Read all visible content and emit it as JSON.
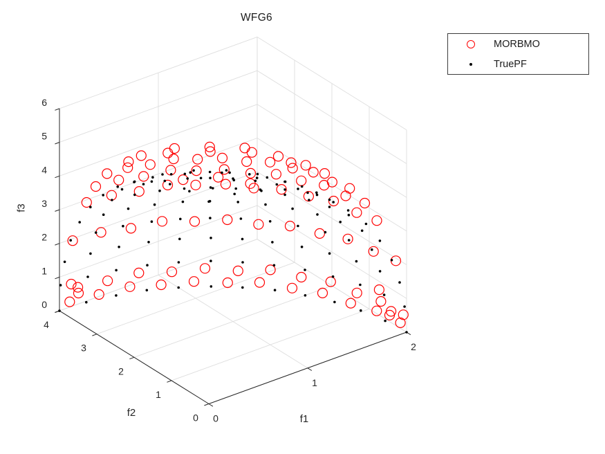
{
  "figure": {
    "background": "#ffffff"
  },
  "chart_data": {
    "type": "scatter",
    "projection": "3d",
    "title": "WFG6",
    "xlabel": "f1",
    "ylabel": "f2",
    "zlabel": "f3",
    "xlim": [
      0,
      2
    ],
    "ylim": [
      0,
      4
    ],
    "zlim": [
      0,
      6
    ],
    "xticks": [
      0,
      1,
      2
    ],
    "yticks": [
      0,
      1,
      2,
      3,
      4
    ],
    "zticks": [
      0,
      1,
      2,
      3,
      4,
      5,
      6
    ],
    "grid": true,
    "legend_position": "northeast-outside",
    "colors": {
      "grid": "#dedede",
      "axis": "#262626",
      "tick_label": "#262626"
    },
    "series": [
      {
        "name": "MORBMO",
        "marker": "circle",
        "color": "#ff0000",
        "points": [
          [
            2.04,
            0.27,
            0.05
          ],
          [
            2.0,
            0.8,
            0.08
          ],
          [
            1.93,
            1.31,
            0.03
          ],
          [
            1.83,
            1.8,
            0.1
          ],
          [
            1.7,
            2.27,
            0.06
          ],
          [
            1.53,
            2.69,
            0.12
          ],
          [
            1.35,
            3.07,
            0.04
          ],
          [
            1.13,
            3.39,
            0.09
          ],
          [
            0.9,
            3.66,
            0.05
          ],
          [
            0.66,
            3.86,
            0.11
          ],
          [
            0.4,
            4.0,
            0.06
          ],
          [
            0.13,
            4.07,
            0.08
          ],
          [
            2.02,
            0.14,
            0.4
          ],
          [
            1.99,
            0.66,
            0.47
          ],
          [
            1.94,
            1.17,
            0.42
          ],
          [
            1.86,
            1.66,
            0.5
          ],
          [
            1.74,
            2.13,
            0.44
          ],
          [
            1.59,
            2.56,
            0.52
          ],
          [
            1.41,
            2.95,
            0.41
          ],
          [
            1.2,
            3.28,
            0.48
          ],
          [
            0.97,
            3.56,
            0.43
          ],
          [
            0.72,
            3.78,
            0.51
          ],
          [
            0.46,
            3.93,
            0.45
          ],
          [
            0.19,
            4.01,
            0.49
          ],
          [
            1.99,
            0.26,
            1.95
          ],
          [
            1.96,
            0.78,
            1.9
          ],
          [
            1.89,
            1.28,
            2.0
          ],
          [
            1.79,
            1.77,
            1.93
          ],
          [
            1.66,
            2.22,
            1.98
          ],
          [
            1.5,
            2.64,
            1.91
          ],
          [
            1.32,
            3.0,
            1.99
          ],
          [
            1.11,
            3.32,
            1.94
          ],
          [
            0.88,
            3.58,
            2.01
          ],
          [
            0.64,
            3.78,
            1.92
          ],
          [
            0.39,
            3.92,
            1.97
          ],
          [
            0.13,
            3.99,
            1.95
          ],
          [
            1.79,
            0.24,
            3.37
          ],
          [
            1.76,
            0.7,
            3.32
          ],
          [
            1.7,
            1.16,
            3.41
          ],
          [
            1.61,
            1.59,
            3.35
          ],
          [
            1.49,
            2.0,
            3.4
          ],
          [
            1.35,
            2.37,
            3.33
          ],
          [
            1.19,
            2.7,
            3.39
          ],
          [
            1.0,
            3.0,
            3.36
          ],
          [
            0.8,
            3.22,
            3.42
          ],
          [
            0.58,
            3.4,
            3.34
          ],
          [
            0.35,
            3.53,
            3.38
          ],
          [
            0.12,
            3.59,
            3.37
          ],
          [
            1.66,
            0.22,
            4.04
          ],
          [
            1.63,
            0.65,
            3.99
          ],
          [
            1.57,
            1.07,
            4.08
          ],
          [
            1.49,
            1.47,
            4.02
          ],
          [
            1.38,
            1.85,
            4.07
          ],
          [
            1.25,
            2.19,
            4.0
          ],
          [
            1.1,
            2.5,
            4.06
          ],
          [
            0.92,
            2.77,
            4.03
          ],
          [
            0.74,
            2.98,
            4.09
          ],
          [
            0.53,
            3.15,
            4.01
          ],
          [
            0.32,
            3.26,
            4.05
          ],
          [
            0.11,
            3.32,
            4.04
          ],
          [
            1.5,
            0.2,
            4.66
          ],
          [
            1.47,
            0.59,
            4.61
          ],
          [
            1.42,
            0.96,
            4.7
          ],
          [
            1.35,
            1.33,
            4.64
          ],
          [
            1.25,
            1.67,
            4.69
          ],
          [
            1.13,
            1.98,
            4.62
          ],
          [
            0.99,
            2.26,
            4.68
          ],
          [
            0.83,
            2.5,
            4.65
          ],
          [
            0.66,
            2.69,
            4.71
          ],
          [
            0.48,
            2.84,
            4.63
          ],
          [
            0.29,
            2.94,
            4.67
          ],
          [
            0.1,
            2.99,
            4.66
          ],
          [
            1.3,
            0.34,
            5.22
          ],
          [
            1.21,
            1.0,
            5.18
          ],
          [
            1.04,
            1.6,
            5.25
          ],
          [
            0.8,
            2.08,
            5.2
          ],
          [
            0.5,
            2.42,
            5.24
          ],
          [
            0.17,
            2.6,
            5.21
          ],
          [
            1.09,
            0.29,
            5.72
          ],
          [
            1.02,
            0.84,
            5.68
          ],
          [
            0.87,
            1.34,
            5.74
          ],
          [
            0.67,
            1.75,
            5.7
          ],
          [
            0.42,
            2.03,
            5.73
          ],
          [
            0.14,
            2.18,
            5.71
          ],
          [
            0.53,
            0.29,
            5.77
          ],
          [
            0.39,
            0.78,
            5.77
          ],
          [
            0.14,
            1.06,
            5.77
          ],
          [
            1.98,
            0.4,
            0.25
          ],
          [
            1.9,
            0.15,
            0.62
          ],
          [
            1.95,
            0.6,
            0.9
          ],
          [
            0.2,
            4.02,
            0.3
          ],
          [
            0.1,
            3.95,
            0.72
          ]
        ]
      },
      {
        "name": "TruePF",
        "marker": "point",
        "color": "#000000",
        "points": [
          [
            2.0,
            0.0,
            0.0
          ],
          [
            1.98,
            0.52,
            0.0
          ],
          [
            1.93,
            1.04,
            0.0
          ],
          [
            1.85,
            1.53,
            0.0
          ],
          [
            1.73,
            2.0,
            0.0
          ],
          [
            1.59,
            2.44,
            0.0
          ],
          [
            1.41,
            2.83,
            0.0
          ],
          [
            1.22,
            3.17,
            0.0
          ],
          [
            1.0,
            3.46,
            0.0
          ],
          [
            0.77,
            3.7,
            0.0
          ],
          [
            0.52,
            3.86,
            0.0
          ],
          [
            0.26,
            3.97,
            0.0
          ],
          [
            0.0,
            4.0,
            0.0
          ],
          [
            1.98,
            0.0,
            0.78
          ],
          [
            1.97,
            0.52,
            0.78
          ],
          [
            1.92,
            1.03,
            0.78
          ],
          [
            1.83,
            1.52,
            0.78
          ],
          [
            1.72,
            1.98,
            0.78
          ],
          [
            1.57,
            2.41,
            0.78
          ],
          [
            1.4,
            2.8,
            0.78
          ],
          [
            1.21,
            3.15,
            0.78
          ],
          [
            0.99,
            3.43,
            0.78
          ],
          [
            0.76,
            3.66,
            0.78
          ],
          [
            0.51,
            3.83,
            0.78
          ],
          [
            0.26,
            3.93,
            0.78
          ],
          [
            0.0,
            3.97,
            0.78
          ],
          [
            1.93,
            0.0,
            1.55
          ],
          [
            1.92,
            0.5,
            1.55
          ],
          [
            1.87,
            1.0,
            1.55
          ],
          [
            1.78,
            1.48,
            1.55
          ],
          [
            1.67,
            1.93,
            1.55
          ],
          [
            1.53,
            2.35,
            1.55
          ],
          [
            1.37,
            2.73,
            1.55
          ],
          [
            1.18,
            3.07,
            1.55
          ],
          [
            0.97,
            3.35,
            1.55
          ],
          [
            0.74,
            3.57,
            1.55
          ],
          [
            0.5,
            3.73,
            1.55
          ],
          [
            0.25,
            3.83,
            1.55
          ],
          [
            0.0,
            3.86,
            1.55
          ],
          [
            1.85,
            0.0,
            2.3
          ],
          [
            1.83,
            0.48,
            2.3
          ],
          [
            1.78,
            0.96,
            2.3
          ],
          [
            1.71,
            1.41,
            2.3
          ],
          [
            1.6,
            1.85,
            2.3
          ],
          [
            1.47,
            2.25,
            2.3
          ],
          [
            1.31,
            2.61,
            2.3
          ],
          [
            1.12,
            2.93,
            2.3
          ],
          [
            0.92,
            3.2,
            2.3
          ],
          [
            0.71,
            3.41,
            2.3
          ],
          [
            0.48,
            3.57,
            2.3
          ],
          [
            0.24,
            3.66,
            2.3
          ],
          [
            0.0,
            3.7,
            2.3
          ],
          [
            1.73,
            0.0,
            3.0
          ],
          [
            1.72,
            0.45,
            3.0
          ],
          [
            1.67,
            0.9,
            3.0
          ],
          [
            1.6,
            1.33,
            3.0
          ],
          [
            1.5,
            1.73,
            3.0
          ],
          [
            1.37,
            2.11,
            3.0
          ],
          [
            1.22,
            2.45,
            3.0
          ],
          [
            1.05,
            2.75,
            3.0
          ],
          [
            0.87,
            3.0,
            3.0
          ],
          [
            0.66,
            3.2,
            3.0
          ],
          [
            0.45,
            3.35,
            3.0
          ],
          [
            0.23,
            3.43,
            3.0
          ],
          [
            0.0,
            3.46,
            3.0
          ],
          [
            1.59,
            0.0,
            3.65
          ],
          [
            1.57,
            0.41,
            3.65
          ],
          [
            1.53,
            0.82,
            3.65
          ],
          [
            1.47,
            1.21,
            3.65
          ],
          [
            1.37,
            1.59,
            3.65
          ],
          [
            1.26,
            1.93,
            3.65
          ],
          [
            1.12,
            2.24,
            3.65
          ],
          [
            0.97,
            2.52,
            3.65
          ],
          [
            0.79,
            2.75,
            3.65
          ],
          [
            0.61,
            2.93,
            3.65
          ],
          [
            0.41,
            3.07,
            3.65
          ],
          [
            0.21,
            3.15,
            3.65
          ],
          [
            0.0,
            3.17,
            3.65
          ],
          [
            1.41,
            0.0,
            4.24
          ],
          [
            1.4,
            0.37,
            4.24
          ],
          [
            1.37,
            0.73,
            4.24
          ],
          [
            1.31,
            1.08,
            4.24
          ],
          [
            1.22,
            1.41,
            4.24
          ],
          [
            1.12,
            1.72,
            4.24
          ],
          [
            1.0,
            2.0,
            4.24
          ],
          [
            0.86,
            2.24,
            4.24
          ],
          [
            0.71,
            2.45,
            4.24
          ],
          [
            0.54,
            2.61,
            4.24
          ],
          [
            0.37,
            2.73,
            4.24
          ],
          [
            0.18,
            2.8,
            4.24
          ],
          [
            0.0,
            2.83,
            4.24
          ],
          [
            1.22,
            0.0,
            4.76
          ],
          [
            1.21,
            0.32,
            4.76
          ],
          [
            1.18,
            0.63,
            4.76
          ],
          [
            1.12,
            0.93,
            4.76
          ],
          [
            1.05,
            1.22,
            4.76
          ],
          [
            0.97,
            1.48,
            4.76
          ],
          [
            0.86,
            1.72,
            4.76
          ],
          [
            0.74,
            1.93,
            4.76
          ],
          [
            0.61,
            2.11,
            4.76
          ],
          [
            0.47,
            2.25,
            4.76
          ],
          [
            0.32,
            2.35,
            4.76
          ],
          [
            0.16,
            2.41,
            4.76
          ],
          [
            0.0,
            2.44,
            4.76
          ],
          [
            1.0,
            0.0,
            5.2
          ],
          [
            0.97,
            0.52,
            5.2
          ],
          [
            0.87,
            1.0,
            5.2
          ],
          [
            0.71,
            1.41,
            5.2
          ],
          [
            0.5,
            1.73,
            5.2
          ],
          [
            0.26,
            1.93,
            5.2
          ],
          [
            0.0,
            2.0,
            5.2
          ],
          [
            0.77,
            0.0,
            5.54
          ],
          [
            0.71,
            0.59,
            5.54
          ],
          [
            0.54,
            1.08,
            5.54
          ],
          [
            0.29,
            1.41,
            5.54
          ],
          [
            0.0,
            1.53,
            5.54
          ],
          [
            0.52,
            0.0,
            5.8
          ],
          [
            0.45,
            0.52,
            5.8
          ],
          [
            0.26,
            0.9,
            5.8
          ],
          [
            0.0,
            1.04,
            5.8
          ],
          [
            0.26,
            0.0,
            5.95
          ],
          [
            0.18,
            0.37,
            5.95
          ],
          [
            0.0,
            0.52,
            5.95
          ],
          [
            0.0,
            0.0,
            6.0
          ]
        ]
      }
    ]
  },
  "legend": {
    "entries": [
      {
        "label": "MORBMO",
        "marker": "circle",
        "color": "#ff0000"
      },
      {
        "label": "TruePF",
        "marker": "dot",
        "color": "#000000"
      }
    ]
  }
}
